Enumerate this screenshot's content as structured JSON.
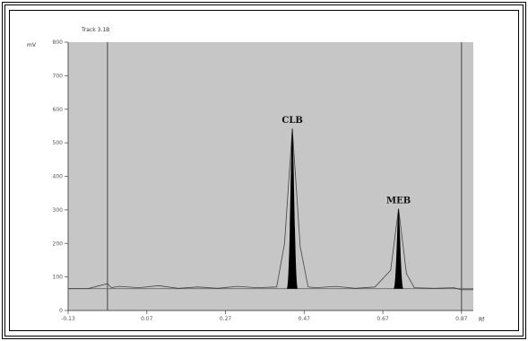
{
  "chart_data": {
    "type": "line",
    "title": "Track 3.1B",
    "ylabel": "mV",
    "xlabel": "Rf",
    "xlim": [
      -0.13,
      0.9
    ],
    "ylim": [
      0,
      800
    ],
    "y_ticks": [
      800,
      700,
      600,
      500,
      400,
      300,
      200,
      100,
      0
    ],
    "y_tick_labels": [
      "800",
      "700",
      "600",
      "500",
      "400",
      "300",
      "200",
      "100",
      "0"
    ],
    "x_ticks": [
      -0.13,
      0.07,
      0.27,
      0.47,
      0.67,
      0.87
    ],
    "x_tick_labels": [
      "-0.13",
      "0.07",
      "0.27",
      "0.47",
      "0.67",
      "0.87"
    ],
    "start_marker_x": -0.03,
    "front_marker_x": 0.87,
    "baseline": 65,
    "peaks": [
      {
        "label": "CLB",
        "x": 0.44,
        "height": 478,
        "width": 0.028
      },
      {
        "label": "MEB",
        "x": 0.71,
        "height": 239,
        "width": 0.025
      }
    ],
    "series": [
      {
        "x": [
          -0.13,
          -0.08,
          -0.03,
          -0.02,
          0.0,
          0.05,
          0.1,
          0.15,
          0.2,
          0.25,
          0.3,
          0.35,
          0.4,
          0.42,
          0.44,
          0.46,
          0.48,
          0.5,
          0.55,
          0.6,
          0.65,
          0.69,
          0.71,
          0.73,
          0.75,
          0.8,
          0.85,
          0.87,
          0.9
        ],
        "values": [
          65,
          65,
          80,
          68,
          72,
          68,
          74,
          66,
          70,
          66,
          72,
          68,
          70,
          200,
          543,
          190,
          70,
          68,
          72,
          66,
          70,
          120,
          304,
          110,
          68,
          66,
          68,
          62,
          62
        ]
      }
    ],
    "grid": false,
    "plot_background": "#c6c6c6",
    "peak_fill": "#000000",
    "trace_color": "#444444"
  }
}
